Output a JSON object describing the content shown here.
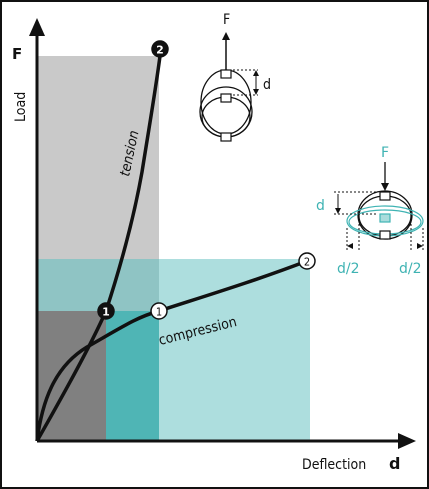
{
  "axes": {
    "y_label": "Load",
    "y_symbol": "F",
    "x_label": "Deflection",
    "x_symbol": "d"
  },
  "curves": {
    "tension": {
      "label": "tension",
      "marker_1": "1",
      "marker_2": "2"
    },
    "compression": {
      "label": "compression",
      "marker_1": "1",
      "marker_2": "2"
    }
  },
  "insets": {
    "tension": {
      "force": "F",
      "deflection": "d"
    },
    "compression": {
      "force": "F",
      "deflection": "d",
      "half_left": "d/2",
      "half_right": "d/2"
    }
  },
  "colors": {
    "tension_region": "#c9c9c9",
    "tension_inner": "#8a8a8a",
    "compression_region": "#a9dcdc",
    "overlap_region": "#5fb8b8",
    "teal_accent": "#3fb3b3",
    "curve": "#111111"
  }
}
